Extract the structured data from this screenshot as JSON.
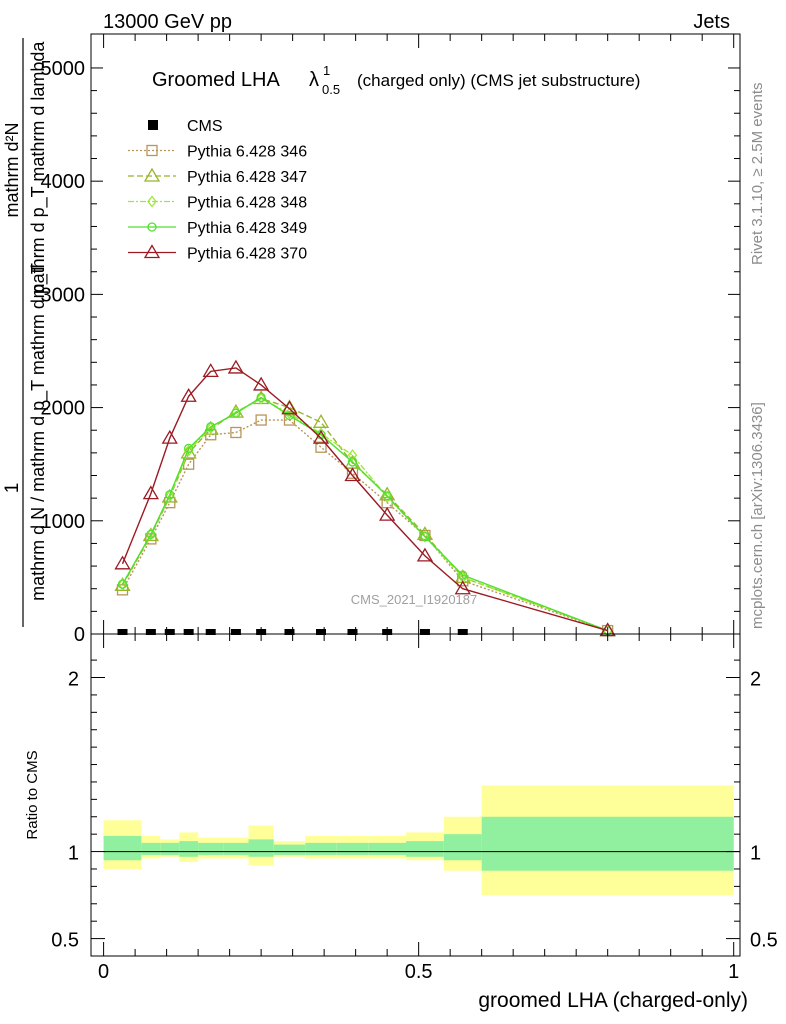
{
  "header": {
    "left": "13000 GeV pp",
    "right": "Jets"
  },
  "side_labels": {
    "rivet": "Rivet 3.1.10, ≥ 2.5M events",
    "mcplots": "mcplots.cern.ch [arXiv:1306.3436]"
  },
  "chart_data": [
    {
      "type": "line",
      "title_main": "Groomed LHA",
      "title_symbol": "λ",
      "title_sup": "1",
      "title_sub": "0.5",
      "title_rest": "(charged only) (CMS jet substructure)",
      "ylabel_num": "1",
      "ylabel_den": "mathrm d N / mathrm d p_T mathrm d p_T",
      "ylabel_num2": "mathrm d²N",
      "ylabel_den2": "mathrm d p_T mathrm d lambda",
      "ylim": [
        0,
        5300
      ],
      "yticks": [
        0,
        1000,
        2000,
        3000,
        4000,
        5000
      ],
      "ytick_labels": [
        "0",
        "1000",
        "2000",
        "3000",
        "4000",
        "5000"
      ],
      "watermark": "CMS_2021_I1920187",
      "cms": {
        "name": "CMS",
        "color": "#000000",
        "x": [
          0.03,
          0.075,
          0.105,
          0.135,
          0.17,
          0.21,
          0.25,
          0.295,
          0.345,
          0.395,
          0.45,
          0.51,
          0.57
        ],
        "y": [
          0,
          0,
          0,
          0,
          0,
          0,
          0,
          0,
          0,
          0,
          0,
          0,
          0
        ]
      },
      "x": [
        0.03,
        0.075,
        0.105,
        0.135,
        0.17,
        0.21,
        0.25,
        0.295,
        0.345,
        0.395,
        0.45,
        0.51,
        0.57,
        0.8
      ],
      "series": [
        {
          "name": "Pythia 6.428 346",
          "color": "#b8965a",
          "dash": "2,2",
          "marker": "square",
          "values": [
            390,
            840,
            1160,
            1500,
            1760,
            1780,
            1890,
            1890,
            1650,
            1420,
            1160,
            870,
            470,
            30
          ]
        },
        {
          "name": "Pythia 6.428 347",
          "color": "#9ab52b",
          "dash": "6,3",
          "marker": "triangle",
          "values": [
            430,
            870,
            1210,
            1600,
            1810,
            1960,
            2080,
            2000,
            1870,
            1510,
            1230,
            880,
            500,
            30
          ]
        },
        {
          "name": "Pythia 6.428 348",
          "color": "#9ee83a",
          "dash": "6,2,2,2",
          "marker": "diamond",
          "values": [
            440,
            880,
            1220,
            1620,
            1820,
            1960,
            2080,
            1950,
            1770,
            1580,
            1210,
            860,
            500,
            30
          ]
        },
        {
          "name": "Pythia 6.428 349",
          "color": "#52e030",
          "dash": "",
          "marker": "circle",
          "values": [
            440,
            880,
            1230,
            1640,
            1830,
            1950,
            2090,
            1930,
            1760,
            1520,
            1220,
            860,
            520,
            30
          ]
        },
        {
          "name": "Pythia 6.428 370",
          "color": "#9b1a23",
          "dash": "",
          "marker": "triangle",
          "values": [
            620,
            1240,
            1730,
            2100,
            2320,
            2350,
            2200,
            1990,
            1730,
            1400,
            1050,
            690,
            400,
            30
          ]
        }
      ]
    },
    {
      "type": "area",
      "ylabel": "Ratio to CMS",
      "xlabel": "groomed LHA (charged-only)",
      "ylim": [
        0.4,
        2.25
      ],
      "yticks": [
        0.5,
        1,
        2
      ],
      "ytick_labels": [
        "0.5",
        "1",
        "2"
      ],
      "xticks": [
        0,
        0.5,
        1
      ],
      "xtick_labels": [
        "0",
        "0.5",
        "1"
      ],
      "xlim": [
        -0.02,
        1.01
      ],
      "bins": [
        {
          "x0": 0.0,
          "x1": 0.06,
          "inner": [
            0.95,
            1.09
          ],
          "outer": [
            0.9,
            1.18
          ]
        },
        {
          "x0": 0.06,
          "x1": 0.09,
          "inner": [
            0.98,
            1.05
          ],
          "outer": [
            0.96,
            1.09
          ]
        },
        {
          "x0": 0.09,
          "x1": 0.12,
          "inner": [
            0.98,
            1.05
          ],
          "outer": [
            0.97,
            1.07
          ]
        },
        {
          "x0": 0.12,
          "x1": 0.15,
          "inner": [
            0.97,
            1.06
          ],
          "outer": [
            0.94,
            1.11
          ]
        },
        {
          "x0": 0.15,
          "x1": 0.19,
          "inner": [
            0.98,
            1.05
          ],
          "outer": [
            0.96,
            1.08
          ]
        },
        {
          "x0": 0.19,
          "x1": 0.23,
          "inner": [
            0.98,
            1.05
          ],
          "outer": [
            0.96,
            1.08
          ]
        },
        {
          "x0": 0.23,
          "x1": 0.27,
          "inner": [
            0.97,
            1.07
          ],
          "outer": [
            0.92,
            1.15
          ]
        },
        {
          "x0": 0.27,
          "x1": 0.32,
          "inner": [
            0.98,
            1.04
          ],
          "outer": [
            0.97,
            1.06
          ]
        },
        {
          "x0": 0.32,
          "x1": 0.37,
          "inner": [
            0.98,
            1.05
          ],
          "outer": [
            0.96,
            1.09
          ]
        },
        {
          "x0": 0.37,
          "x1": 0.42,
          "inner": [
            0.98,
            1.05
          ],
          "outer": [
            0.96,
            1.09
          ]
        },
        {
          "x0": 0.42,
          "x1": 0.48,
          "inner": [
            0.98,
            1.05
          ],
          "outer": [
            0.96,
            1.09
          ]
        },
        {
          "x0": 0.48,
          "x1": 0.54,
          "inner": [
            0.97,
            1.06
          ],
          "outer": [
            0.95,
            1.11
          ]
        },
        {
          "x0": 0.54,
          "x1": 0.6,
          "inner": [
            0.95,
            1.1
          ],
          "outer": [
            0.89,
            1.2
          ]
        },
        {
          "x0": 0.6,
          "x1": 1.0,
          "inner": [
            0.89,
            1.2
          ],
          "outer": [
            0.75,
            1.38
          ]
        }
      ],
      "colors": {
        "inner": "#90f0a0",
        "outer": "#ffff99"
      }
    }
  ]
}
